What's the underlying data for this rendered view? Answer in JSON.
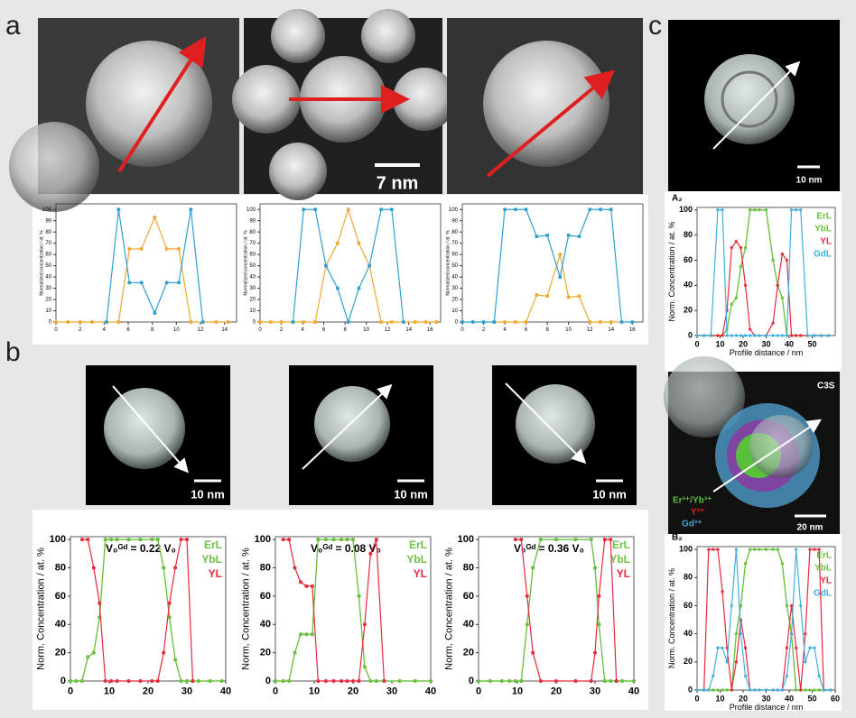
{
  "panel_labels": [
    "a",
    "b",
    "c"
  ],
  "scale_bars": [
    "7 nm",
    "10 nm",
    "10 nm",
    "10 nm",
    "10 nm",
    "20 nm"
  ],
  "image_labels": [
    "C3S",
    "Er³⁺/Yb³⁺",
    "Y³⁺",
    "Gd³⁺"
  ],
  "chart_data": [
    {
      "type": "line",
      "ylabel": "Normalized concentration / at. %",
      "x": [
        0,
        1,
        2,
        3,
        4.2,
        5.2,
        6.1,
        7.1,
        8.2,
        9.2,
        10.2,
        11.2,
        12.2,
        13.3,
        14.3
      ],
      "xlim": [
        0,
        15
      ],
      "xticks": [
        0,
        2,
        4,
        6,
        8,
        10,
        12,
        14
      ],
      "ylim": [
        0,
        105
      ],
      "yticks": [
        0,
        10,
        20,
        30,
        40,
        50,
        60,
        70,
        80,
        90,
        100
      ],
      "series": [
        {
          "color": "#f0a830",
          "values": [
            0,
            0,
            0,
            0,
            0,
            0,
            65,
            65,
            93,
            65,
            65,
            0,
            0,
            0,
            0
          ]
        },
        {
          "color": "#2f9fd0",
          "values": [
            null,
            null,
            null,
            null,
            0,
            100,
            35,
            35,
            8,
            35,
            35,
            100,
            0,
            null,
            null
          ]
        }
      ]
    },
    {
      "type": "line",
      "ylabel": "Normalized concentration / at. %",
      "x": [
        0,
        1,
        2,
        3.1,
        4.1,
        5.2,
        6.2,
        7.3,
        8.3,
        9.3,
        10.3,
        11.4,
        12.4,
        13.5,
        14.6,
        15.6,
        16.6
      ],
      "xlim": [
        0,
        17
      ],
      "xticks": [
        0,
        2,
        4,
        6,
        8,
        10,
        12,
        14,
        16
      ],
      "ylim": [
        0,
        105
      ],
      "yticks": [
        0,
        10,
        20,
        30,
        40,
        50,
        60,
        70,
        80,
        90,
        100
      ],
      "series": [
        {
          "color": "#f0a830",
          "values": [
            0,
            0,
            0,
            0,
            0,
            0,
            50,
            70,
            100,
            70,
            50,
            0,
            0,
            0,
            0,
            0,
            0
          ]
        },
        {
          "color": "#2f9fd0",
          "values": [
            null,
            null,
            null,
            0,
            100,
            100,
            50,
            30,
            0,
            30,
            50,
            100,
            100,
            0,
            null,
            null,
            null
          ]
        }
      ]
    },
    {
      "type": "line",
      "ylabel": "Normalized concentration / at. %",
      "x": [
        0,
        1,
        2,
        3,
        4,
        5,
        6,
        7,
        8,
        9.2,
        10,
        11,
        12,
        13,
        14,
        15,
        16
      ],
      "xlim": [
        0,
        17
      ],
      "xticks": [
        0,
        2,
        4,
        6,
        8,
        10,
        12,
        14,
        16
      ],
      "ylim": [
        0,
        105
      ],
      "yticks": [
        0,
        10,
        20,
        30,
        40,
        50,
        60,
        70,
        80,
        90,
        100
      ],
      "series": [
        {
          "color": "#f0a830",
          "values": [
            null,
            null,
            null,
            0,
            0,
            0,
            0,
            24,
            23,
            60,
            22,
            23,
            0,
            0,
            0,
            0,
            null
          ]
        },
        {
          "color": "#2f9fd0",
          "values": [
            0,
            0,
            0,
            0,
            100,
            100,
            100,
            76,
            77,
            40,
            77,
            76,
            100,
            100,
            100,
            0,
            0
          ]
        }
      ]
    },
    {
      "type": "line",
      "ylabel": "Norm. Concentration / at. %",
      "annotation": "V₀ᴳᵈ = 0.22 V₀",
      "x": [
        0,
        1.5,
        3,
        4.5,
        6,
        7.5,
        9,
        10.5,
        12,
        15,
        18,
        21,
        22.5,
        24,
        25.5,
        27,
        28.5,
        30,
        31.5,
        33,
        36,
        39
      ],
      "xlim": [
        0,
        40
      ],
      "xticks": [
        0,
        10,
        20,
        30,
        40
      ],
      "ylim": [
        0,
        102
      ],
      "yticks": [
        0,
        20,
        40,
        60,
        80,
        100
      ],
      "series": [
        {
          "name": "ErL",
          "color": "#6cc040",
          "values": [
            0,
            0,
            0,
            17,
            20,
            45,
            100,
            100,
            100,
            100,
            100,
            100,
            100,
            80,
            45,
            15,
            0,
            0,
            0,
            0,
            0,
            0
          ]
        },
        {
          "name": "YbL",
          "color": "#6cc040",
          "values": [
            0,
            0,
            0,
            17,
            20,
            45,
            100,
            100,
            100,
            100,
            100,
            100,
            100,
            80,
            45,
            15,
            0,
            0,
            0,
            0,
            0,
            0
          ]
        },
        {
          "name": "YL",
          "color": "#e8283c",
          "values": [
            null,
            null,
            100,
            100,
            80,
            55,
            0,
            0,
            0,
            0,
            0,
            0,
            0,
            20,
            55,
            80,
            100,
            100,
            0,
            null,
            null,
            null
          ]
        }
      ]
    },
    {
      "type": "line",
      "ylabel": "Norm. Concentration / at. %",
      "annotation": "V₀ᴳᵈ = 0.08 V₀",
      "x": [
        0,
        2,
        3.5,
        5,
        6.5,
        8,
        9.5,
        11,
        13,
        15,
        17,
        18.5,
        20,
        21.5,
        23,
        24.5,
        26,
        28,
        32,
        36,
        40
      ],
      "xlim": [
        0,
        40
      ],
      "xticks": [
        0,
        10,
        20,
        30,
        40
      ],
      "ylim": [
        0,
        102
      ],
      "yticks": [
        0,
        20,
        40,
        60,
        80,
        100
      ],
      "series": [
        {
          "name": "ErL",
          "color": "#6cc040",
          "values": [
            0,
            0,
            0,
            20,
            33,
            33,
            33,
            100,
            100,
            100,
            100,
            100,
            100,
            60,
            10,
            0,
            0,
            0,
            0,
            0,
            0
          ]
        },
        {
          "name": "YbL",
          "color": "#6cc040",
          "values": [
            0,
            0,
            0,
            20,
            33,
            33,
            33,
            100,
            100,
            100,
            100,
            100,
            100,
            60,
            10,
            0,
            0,
            0,
            0,
            0,
            0
          ]
        },
        {
          "name": "YL",
          "color": "#e8283c",
          "values": [
            null,
            100,
            100,
            80,
            70,
            67,
            67,
            0,
            0,
            0,
            0,
            0,
            0,
            0,
            40,
            90,
            100,
            0,
            null,
            null,
            null
          ]
        }
      ]
    },
    {
      "type": "line",
      "ylabel": "Norm. Concentration / at. %",
      "annotation": "V₀ᴳᵈ = 0.36 V₀",
      "x": [
        0,
        3,
        6,
        8,
        9.5,
        11,
        12.5,
        14,
        16,
        20,
        25,
        29,
        30,
        31,
        32.5,
        34,
        35.5,
        37,
        40
      ],
      "xlim": [
        0,
        40
      ],
      "xticks": [
        0,
        10,
        20,
        30,
        40
      ],
      "ylim": [
        0,
        102
      ],
      "yticks": [
        0,
        20,
        40,
        60,
        80,
        100
      ],
      "series": [
        {
          "name": "ErL",
          "color": "#6cc040",
          "values": [
            0,
            0,
            0,
            0,
            0,
            0,
            40,
            80,
            100,
            100,
            100,
            100,
            80,
            40,
            0,
            0,
            0,
            0,
            0
          ]
        },
        {
          "name": "YbL",
          "color": "#6cc040",
          "values": [
            0,
            0,
            0,
            0,
            0,
            0,
            40,
            80,
            100,
            100,
            100,
            100,
            80,
            40,
            0,
            0,
            0,
            0,
            0
          ]
        },
        {
          "name": "YL",
          "color": "#e8283c",
          "values": [
            null,
            null,
            null,
            null,
            100,
            100,
            60,
            20,
            0,
            0,
            0,
            0,
            20,
            60,
            100,
            100,
            0,
            null,
            null
          ]
        }
      ]
    },
    {
      "type": "line",
      "title": "A₂",
      "ylabel": "Norm. Concentration / at. %",
      "xlabel": "Profile distance / nm",
      "x": [
        0,
        3,
        6,
        9,
        11,
        13,
        15,
        17,
        19,
        21,
        23,
        25,
        27,
        30,
        33,
        35,
        37,
        39,
        41,
        43,
        45,
        48,
        51,
        54,
        57
      ],
      "xlim": [
        0,
        60
      ],
      "xticks": [
        0,
        10,
        20,
        30,
        40,
        50
      ],
      "ylim": [
        0,
        102
      ],
      "yticks": [
        0,
        20,
        40,
        60,
        80,
        100
      ],
      "series": [
        {
          "name": "ErL",
          "color": "#6cc040",
          "values": [
            0,
            0,
            0,
            0,
            0,
            5,
            25,
            30,
            55,
            70,
            100,
            100,
            100,
            100,
            60,
            40,
            30,
            0,
            0,
            0,
            0,
            0,
            0,
            0,
            0
          ]
        },
        {
          "name": "YbL",
          "color": "#6cc040",
          "values": [
            0,
            0,
            0,
            0,
            0,
            5,
            25,
            30,
            55,
            70,
            100,
            100,
            100,
            100,
            60,
            40,
            30,
            0,
            0,
            0,
            0,
            0,
            0,
            0,
            0
          ]
        },
        {
          "name": "YL",
          "color": "#e8283c",
          "values": [
            0,
            0,
            0,
            0,
            0,
            20,
            70,
            75,
            70,
            40,
            5,
            0,
            0,
            0,
            10,
            40,
            65,
            60,
            0,
            0,
            0,
            0,
            0,
            0,
            0
          ]
        },
        {
          "name": "GdL",
          "color": "#40b0e0",
          "values": [
            0,
            0,
            0,
            100,
            100,
            0,
            0,
            0,
            0,
            0,
            0,
            0,
            0,
            0,
            0,
            0,
            0,
            0,
            100,
            100,
            100,
            0,
            0,
            0,
            0
          ]
        }
      ]
    },
    {
      "type": "line",
      "title": "B₂",
      "ylabel": "Norm. Concentration / at. %",
      "xlabel": "Profile distance / nm",
      "x": [
        0,
        3,
        5,
        7,
        9,
        11,
        13,
        15,
        17,
        19,
        21,
        23,
        25,
        27,
        30,
        33,
        35,
        37,
        39,
        41,
        43,
        45,
        47,
        49,
        51,
        53,
        55,
        58
      ],
      "xlim": [
        0,
        60
      ],
      "xticks": [
        0,
        10,
        20,
        30,
        40,
        50,
        60
      ],
      "ylim": [
        0,
        102
      ],
      "yticks": [
        0,
        20,
        40,
        60,
        80,
        100
      ],
      "series": [
        {
          "name": "ErL",
          "color": "#6cc040",
          "values": [
            0,
            0,
            0,
            0,
            0,
            0,
            0,
            0,
            40,
            60,
            90,
            100,
            100,
            100,
            100,
            100,
            100,
            90,
            60,
            40,
            0,
            0,
            0,
            0,
            0,
            0,
            0,
            0
          ]
        },
        {
          "name": "YbL",
          "color": "#6cc040",
          "values": [
            0,
            0,
            0,
            0,
            0,
            0,
            0,
            0,
            40,
            60,
            90,
            100,
            100,
            100,
            100,
            100,
            100,
            90,
            60,
            40,
            0,
            0,
            0,
            0,
            0,
            0,
            0,
            0
          ]
        },
        {
          "name": "YL",
          "color": "#e8283c",
          "values": [
            0,
            0,
            100,
            100,
            100,
            70,
            30,
            0,
            20,
            50,
            30,
            0,
            0,
            0,
            0,
            0,
            0,
            0,
            30,
            60,
            30,
            0,
            40,
            100,
            100,
            100,
            0,
            0
          ]
        },
        {
          "name": "GdL",
          "color": "#40b0e0",
          "values": [
            0,
            0,
            0,
            10,
            30,
            30,
            20,
            60,
            100,
            40,
            10,
            0,
            0,
            0,
            0,
            0,
            0,
            0,
            10,
            40,
            100,
            60,
            20,
            30,
            30,
            10,
            0,
            0
          ]
        }
      ]
    }
  ]
}
